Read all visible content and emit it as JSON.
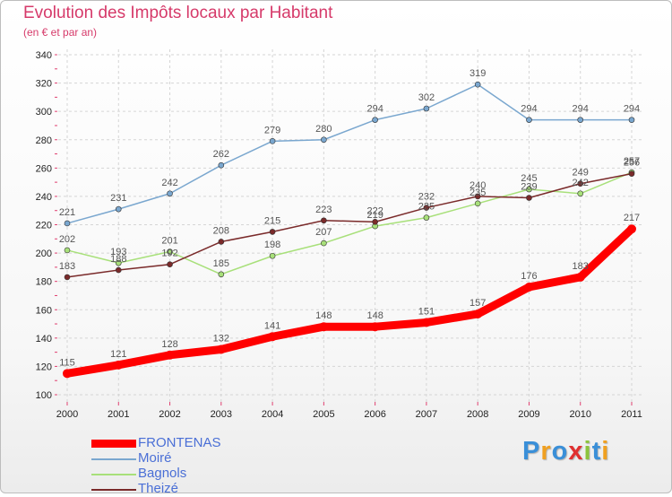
{
  "title": "Evolution des Impôts locaux par Habitant",
  "subtitle": "(en € et par an)",
  "brand": "Proxiti",
  "chart_data": {
    "type": "line",
    "title": "Evolution des Impôts locaux par Habitant",
    "subtitle": "(en € et par an)",
    "x": [
      "2000",
      "2001",
      "2002",
      "2003",
      "2004",
      "2005",
      "2006",
      "2007",
      "2008",
      "2009",
      "2010",
      "2011"
    ],
    "ylim": [
      100,
      340
    ],
    "yticks": [
      100,
      120,
      140,
      160,
      180,
      200,
      220,
      240,
      260,
      280,
      300,
      320,
      340
    ],
    "grid": true,
    "legend_position": "bottom-left",
    "series": [
      {
        "name": "FRONTENAS",
        "color": "#ff0000",
        "values": [
          115,
          121,
          128,
          132,
          141,
          148,
          148,
          151,
          157,
          176,
          183,
          217
        ]
      },
      {
        "name": "Moiré",
        "color": "#7aa7cf",
        "values": [
          221,
          231,
          242,
          262,
          279,
          280,
          294,
          302,
          319,
          294,
          294,
          294
        ]
      },
      {
        "name": "Bagnols",
        "color": "#a8e07a",
        "values": [
          202,
          193,
          201,
          185,
          198,
          207,
          219,
          225,
          235,
          245,
          242,
          257
        ]
      },
      {
        "name": "Theizé",
        "color": "#7a2a2a",
        "values": [
          183,
          188,
          192,
          208,
          215,
          223,
          222,
          232,
          240,
          239,
          249,
          256
        ]
      }
    ]
  }
}
